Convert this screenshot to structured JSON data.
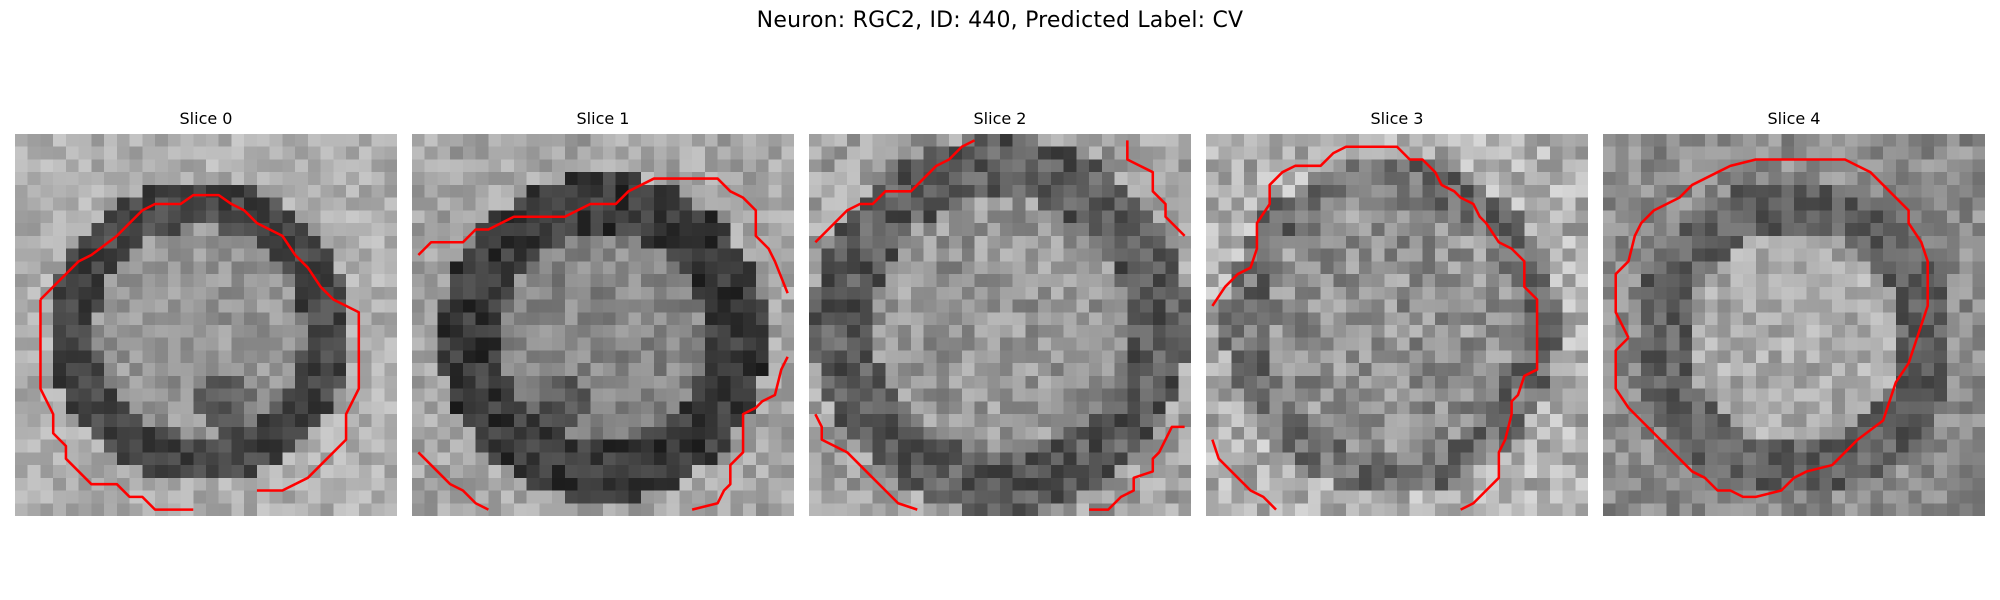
{
  "figure": {
    "title": "Neuron: RGC2, ID: 440, Predicted Label: CV",
    "contour_color": "#ff0000"
  },
  "panels": [
    {
      "title": "Slice 0"
    },
    {
      "title": "Slice 1"
    },
    {
      "title": "Slice 2"
    },
    {
      "title": "Slice 3"
    },
    {
      "title": "Slice 4"
    }
  ]
}
